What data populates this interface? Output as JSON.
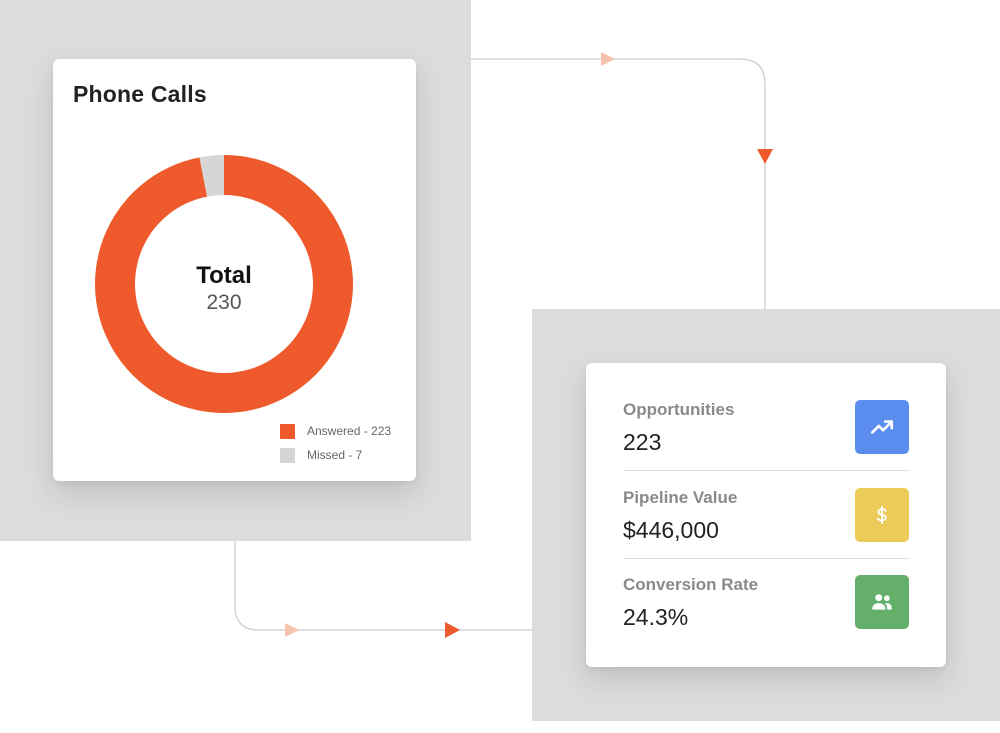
{
  "phone_calls_card": {
    "title": "Phone Calls",
    "center_label": "Total",
    "center_value": "230",
    "legend": [
      {
        "label": "Answered - 223",
        "color": "#ee5a2c"
      },
      {
        "label": "Missed - 7",
        "color": "#d6d6d6"
      }
    ]
  },
  "chart_data": {
    "type": "pie",
    "title": "Phone Calls",
    "categories": [
      "Answered",
      "Missed"
    ],
    "values": [
      223,
      7
    ],
    "colors": [
      "#ee5a2c",
      "#d6d6d6"
    ],
    "total": 230,
    "donut": true
  },
  "metrics_card": {
    "items": [
      {
        "label": "Opportunities",
        "value": "223",
        "icon": "trending-up-icon",
        "icon_color": "#5b8def"
      },
      {
        "label": "Pipeline Value",
        "value": "$446,000",
        "icon": "dollar-icon",
        "icon_color": "#eccb5a"
      },
      {
        "label": "Conversion Rate",
        "value": "24.3%",
        "icon": "users-icon",
        "icon_color": "#64b06a"
      }
    ]
  },
  "colors": {
    "accent": "#ee5a2c",
    "arrow_light": "#f6c2ad",
    "connector": "#d4d4d4",
    "panel_bg": "#dcdcdc"
  }
}
